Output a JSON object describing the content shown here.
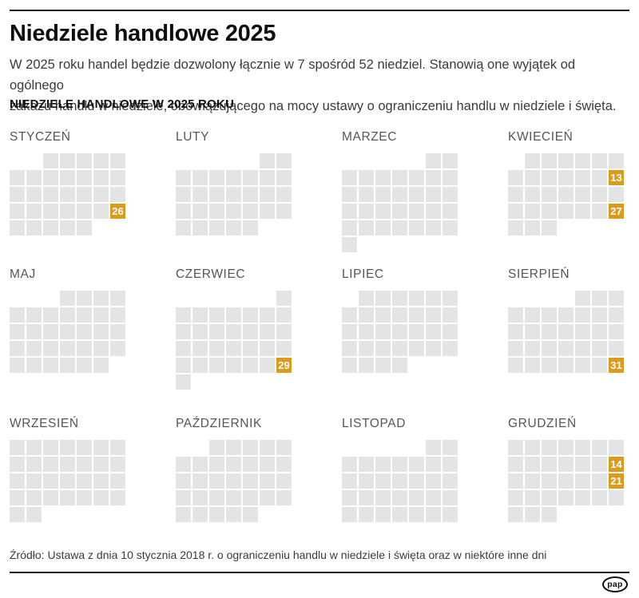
{
  "page": {
    "title": "Niedziele handlowe 2025",
    "intro_lines": [
      "W 2025 roku handel będzie dozwolony łącznie w 7 spośród 52 niedziel. Stanowią one wyjątek od ogólnego",
      "zakazu handlu w niedziele, obowiązującego na mocy ustawy o ograniczeniu handlu w niedziele i święta."
    ],
    "section_heading": "NIEDZIELE HANDLOWE W 2025 ROKU",
    "source": "Źródło: Ustawa z dnia 10 stycznia 2018 r. o ograniczeniu handlu w niedziele i święta oraz w niektóre inne dni",
    "logo_text": "pap"
  },
  "colors": {
    "highlight_orange": "#dd9b1e",
    "day_square_gray": "#e2e4e6",
    "month_label_gray": "#55565a",
    "rule_black": "#1a1a1a"
  },
  "calendar": {
    "year": "2025",
    "week_starts": "monday",
    "trading_sundays_total": "7",
    "months": [
      {
        "name": "STYCZEŃ",
        "slug": "styczen",
        "first_day_column": 3,
        "days": 31,
        "trading_sundays": [
          26
        ]
      },
      {
        "name": "LUTY",
        "slug": "luty",
        "first_day_column": 6,
        "days": 28,
        "trading_sundays": []
      },
      {
        "name": "MARZEC",
        "slug": "marzec",
        "first_day_column": 6,
        "days": 31,
        "trading_sundays": []
      },
      {
        "name": "KWIECIEŃ",
        "slug": "kwiecien",
        "first_day_column": 2,
        "days": 30,
        "trading_sundays": [
          13,
          27
        ]
      },
      {
        "name": "MAJ",
        "slug": "maj",
        "first_day_column": 4,
        "days": 31,
        "trading_sundays": []
      },
      {
        "name": "CZERWIEC",
        "slug": "czerwiec",
        "first_day_column": 7,
        "days": 30,
        "trading_sundays": [
          29
        ]
      },
      {
        "name": "LIPIEC",
        "slug": "lipiec",
        "first_day_column": 2,
        "days": 31,
        "trading_sundays": []
      },
      {
        "name": "SIERPIEŃ",
        "slug": "sierpien",
        "first_day_column": 5,
        "days": 31,
        "trading_sundays": [
          31
        ]
      },
      {
        "name": "WRZESIEŃ",
        "slug": "wrzesien",
        "first_day_column": 1,
        "days": 30,
        "trading_sundays": []
      },
      {
        "name": "PAŹDZIERNIK",
        "slug": "pazdziernik",
        "first_day_column": 3,
        "days": 31,
        "trading_sundays": []
      },
      {
        "name": "LISTOPAD",
        "slug": "listopad",
        "first_day_column": 6,
        "days": 30,
        "trading_sundays": []
      },
      {
        "name": "GRUDZIEŃ",
        "slug": "grudzien",
        "first_day_column": 1,
        "days": 31,
        "trading_sundays": [
          14,
          21
        ]
      }
    ]
  }
}
